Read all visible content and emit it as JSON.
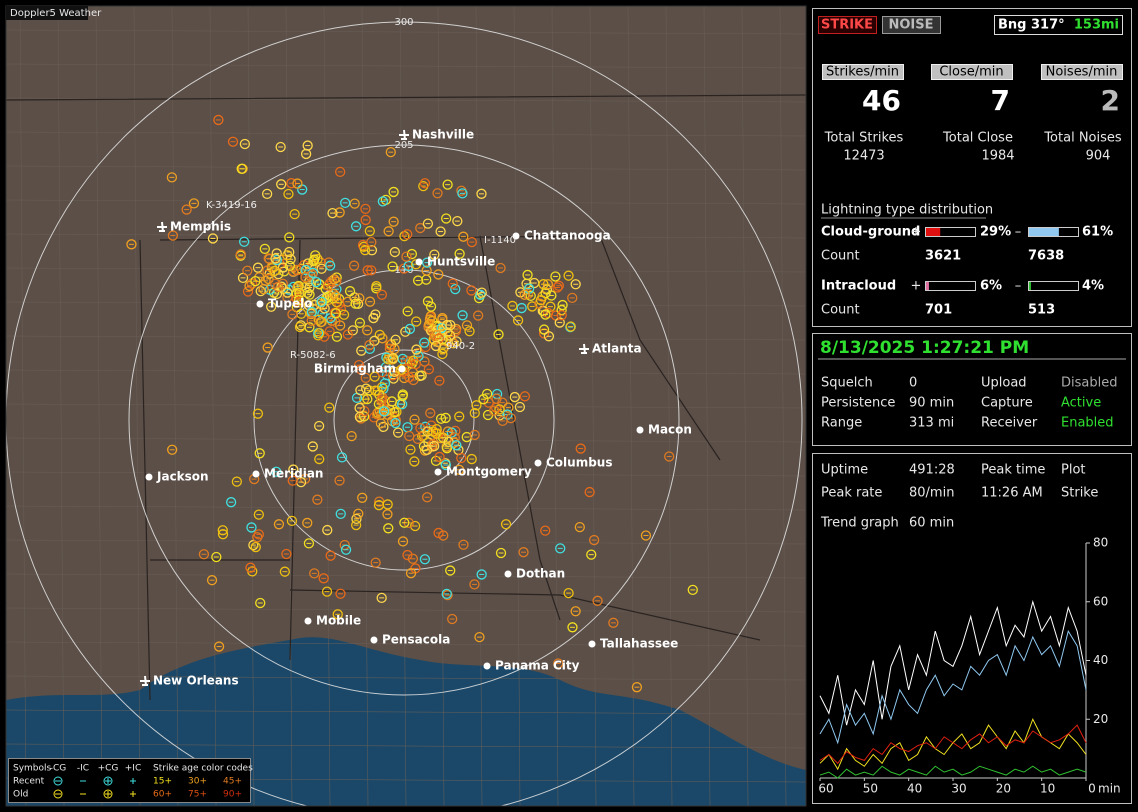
{
  "app": {
    "title": "Doppler5 Weather"
  },
  "map": {
    "range_rings": [
      "300",
      "205",
      "110"
    ],
    "cities": [
      "Nashville",
      "Memphis",
      "Chattanooga",
      "Huntsville",
      "Tupelo",
      "Atlanta",
      "Birmingham",
      "Macon",
      "Jackson",
      "Meridian",
      "Montgomery",
      "Columbus",
      "Dothan",
      "Mobile",
      "Pensacola",
      "Tallahassee",
      "Panama City",
      "New Orleans"
    ],
    "storm_tags": [
      "K-3419-16",
      "I-1140",
      "R-5082-6",
      "940-2"
    ]
  },
  "legend": {
    "symbols_label": "Symbols",
    "columns": [
      "-CG",
      "-IC",
      "+CG",
      "+IC"
    ],
    "rows": [
      "Recent",
      "Old"
    ],
    "age_title": "Strike age color codes",
    "ages_recent": [
      "15+",
      "30+",
      "45+"
    ],
    "ages_old": [
      "60+",
      "75+",
      "90+"
    ]
  },
  "status": {
    "strike_button": "STRIKE",
    "noise_button": "NOISE",
    "bearing": "Bng 317°",
    "distance": "153mi"
  },
  "rates": [
    {
      "label": "Strikes/min",
      "value": 46
    },
    {
      "label": "Close/min",
      "value": 7
    },
    {
      "label": "Noises/min",
      "value": 2
    }
  ],
  "totals": [
    {
      "label": "Total Strikes",
      "value": 12473
    },
    {
      "label": "Total Close",
      "value": 1984
    },
    {
      "label": "Total Noises",
      "value": 904
    }
  ],
  "distribution": {
    "title": "Lightning type distribution",
    "count_label": "Count",
    "plus_sign": "+",
    "minus_sign": "–",
    "rows": [
      {
        "label": "Cloud-ground",
        "plus": {
          "value": 29,
          "label": "29%"
        },
        "minus": {
          "value": 61,
          "label": "61%"
        },
        "plus_count": 3621,
        "minus_count": 7638
      },
      {
        "label": "Intracloud",
        "plus": {
          "value": 6,
          "label": "6%"
        },
        "minus": {
          "value": 4,
          "label": "4%"
        },
        "plus_count": 701,
        "minus_count": 513
      }
    ]
  },
  "datetime": "8/13/2025 1:27:21 PM",
  "settings": [
    [
      "Squelch",
      "0",
      "Upload",
      "Disabled"
    ],
    [
      "Persistence",
      "90 min",
      "Capture",
      "Active"
    ],
    [
      "Range",
      "313 mi",
      "Receiver",
      "Enabled"
    ]
  ],
  "stats": [
    [
      "Uptime",
      "491:28",
      "Peak time",
      "Plot"
    ],
    [
      "Peak rate",
      "80/min",
      "11:26 AM",
      "Strike"
    ],
    [
      "Trend graph",
      "60 min"
    ]
  ],
  "trend": {
    "type": "line",
    "x_unit": "min",
    "xlim": [
      60,
      0
    ],
    "xticks": [
      60,
      50,
      40,
      30,
      20,
      10,
      0
    ],
    "ylim": [
      0,
      80
    ],
    "yticks": [
      20,
      40,
      60,
      80
    ],
    "x": [
      60,
      58,
      56,
      54,
      52,
      50,
      48,
      46,
      44,
      42,
      40,
      38,
      36,
      34,
      32,
      30,
      28,
      26,
      24,
      22,
      20,
      18,
      16,
      14,
      12,
      10,
      8,
      6,
      4,
      2,
      0
    ],
    "series": [
      {
        "color": "#ffffff",
        "values": [
          28,
          22,
          35,
          18,
          30,
          25,
          40,
          20,
          38,
          45,
          30,
          42,
          35,
          50,
          40,
          38,
          45,
          55,
          42,
          50,
          58,
          45,
          52,
          48,
          60,
          50,
          55,
          45,
          58,
          50,
          35
        ]
      },
      {
        "color": "#8fc8f0",
        "values": [
          15,
          20,
          12,
          25,
          18,
          22,
          15,
          28,
          20,
          30,
          25,
          22,
          30,
          35,
          28,
          32,
          30,
          38,
          35,
          40,
          42,
          35,
          45,
          40,
          48,
          42,
          45,
          38,
          50,
          45,
          30
        ]
      },
      {
        "color": "#f0e020",
        "values": [
          5,
          8,
          3,
          10,
          6,
          4,
          8,
          5,
          10,
          12,
          6,
          8,
          14,
          10,
          8,
          12,
          15,
          10,
          12,
          18,
          14,
          10,
          16,
          12,
          20,
          14,
          12,
          10,
          15,
          12,
          8
        ]
      },
      {
        "color": "#e02010",
        "values": [
          6,
          8,
          5,
          9,
          7,
          6,
          10,
          8,
          12,
          10,
          9,
          11,
          12,
          10,
          14,
          12,
          10,
          13,
          15,
          12,
          14,
          11,
          13,
          12,
          16,
          14,
          12,
          13,
          15,
          18,
          12
        ]
      },
      {
        "color": "#30c030",
        "values": [
          1,
          2,
          0,
          3,
          1,
          2,
          1,
          4,
          2,
          1,
          3,
          2,
          1,
          4,
          2,
          3,
          1,
          2,
          4,
          3,
          2,
          1,
          3,
          2,
          4,
          2,
          3,
          1,
          2,
          3,
          2
        ]
      }
    ]
  }
}
